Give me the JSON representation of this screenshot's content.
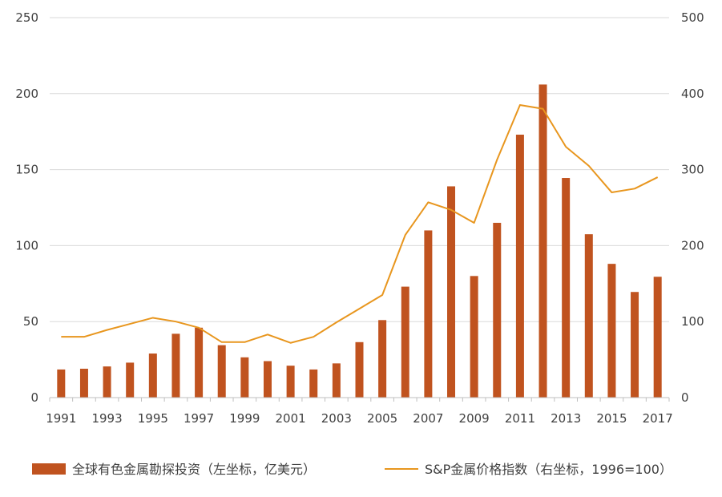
{
  "chart_data": {
    "type": "bar+line",
    "categories": [
      "1991",
      "1992",
      "1993",
      "1994",
      "1995",
      "1996",
      "1997",
      "1998",
      "1999",
      "2000",
      "2001",
      "2002",
      "2003",
      "2004",
      "2005",
      "2006",
      "2007",
      "2008",
      "2009",
      "2010",
      "2011",
      "2012",
      "2013",
      "2014",
      "2015",
      "2016",
      "2017"
    ],
    "x_tick_labels": [
      "1991",
      "1993",
      "1995",
      "1997",
      "1999",
      "2001",
      "2003",
      "2005",
      "2007",
      "2009",
      "2011",
      "2013",
      "2015",
      "2017"
    ],
    "series": [
      {
        "name": "全球有色金属勘探投资（左坐标，亿美元）",
        "type": "bar",
        "axis": "left",
        "color": "#c0531f",
        "values": [
          18.5,
          19,
          20.5,
          23,
          29,
          42,
          46,
          34.5,
          26.5,
          24,
          21,
          18.5,
          22.5,
          36.5,
          51,
          73,
          110,
          139,
          80,
          115,
          173,
          206,
          144.5,
          107.5,
          88,
          69.5,
          79.5
        ]
      },
      {
        "name": "S&P金属价格指数（右坐标，1996=100）",
        "type": "line",
        "axis": "right",
        "color": "#e8961e",
        "values": [
          80,
          80,
          89,
          97,
          105,
          100,
          92,
          73,
          73,
          83,
          72,
          80,
          99,
          117,
          135,
          214,
          257,
          247,
          230,
          313,
          385,
          380,
          330,
          305,
          270,
          275,
          290
        ]
      }
    ],
    "y_left": {
      "min": 0,
      "max": 250,
      "ticks": [
        "0",
        "50",
        "100",
        "150",
        "200",
        "250"
      ]
    },
    "y_right": {
      "min": 0,
      "max": 500,
      "ticks": [
        "0",
        "100",
        "200",
        "300",
        "400",
        "500"
      ]
    },
    "grid": true,
    "legend_position": "bottom"
  }
}
